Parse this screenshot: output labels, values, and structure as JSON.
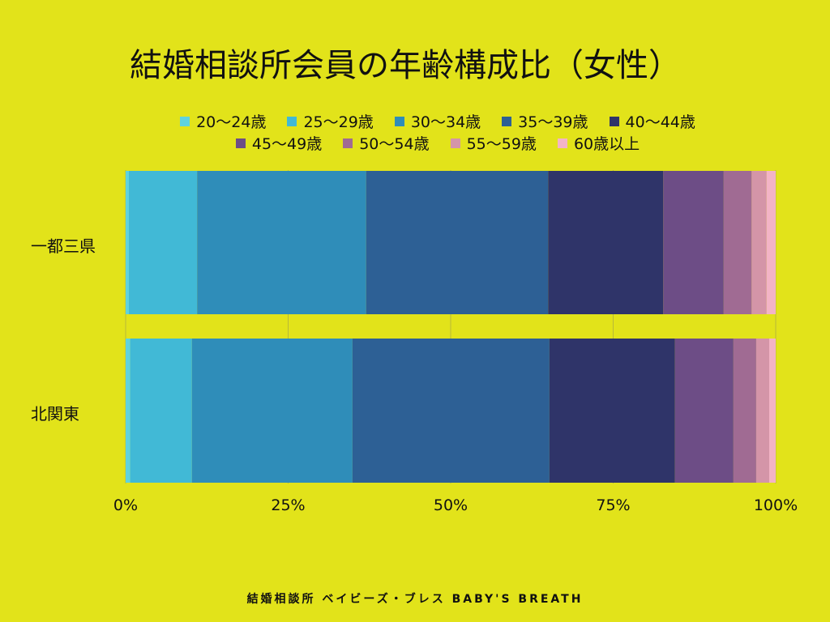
{
  "footer": "結婚相談所 ベイビーズ・ブレス BABY'S BREATH",
  "chart_data": {
    "type": "bar",
    "orientation": "horizontal",
    "stacked": true,
    "title": "結婚相談所会員の年齢構成比（女性）",
    "categories": [
      "一都三県",
      "北関東"
    ],
    "xlim": [
      0,
      100
    ],
    "xticks": [
      "0%",
      "25%",
      "50%",
      "75%",
      "100%"
    ],
    "legend_position": "top",
    "grid": true,
    "series": [
      {
        "name": "20〜24歳",
        "color": "#5fd3de",
        "values": [
          0.5,
          0.7
        ]
      },
      {
        "name": "25〜29歳",
        "color": "#41b9d6",
        "values": [
          10.5,
          9.5
        ]
      },
      {
        "name": "30〜34歳",
        "color": "#2f8db9",
        "values": [
          26.0,
          24.7
        ]
      },
      {
        "name": "35〜39歳",
        "color": "#2d6095",
        "values": [
          28.0,
          30.3
        ]
      },
      {
        "name": "40〜44歳",
        "color": "#2f3469",
        "values": [
          17.7,
          19.3
        ]
      },
      {
        "name": "45〜49歳",
        "color": "#6d4d86",
        "values": [
          9.3,
          9.0
        ]
      },
      {
        "name": "50〜54歳",
        "color": "#a06b93",
        "values": [
          4.3,
          3.5
        ]
      },
      {
        "name": "55〜59歳",
        "color": "#d495a8",
        "values": [
          2.3,
          2.0
        ]
      },
      {
        "name": "60歳以上",
        "color": "#f3b4c6",
        "values": [
          1.4,
          1.0
        ]
      }
    ]
  }
}
